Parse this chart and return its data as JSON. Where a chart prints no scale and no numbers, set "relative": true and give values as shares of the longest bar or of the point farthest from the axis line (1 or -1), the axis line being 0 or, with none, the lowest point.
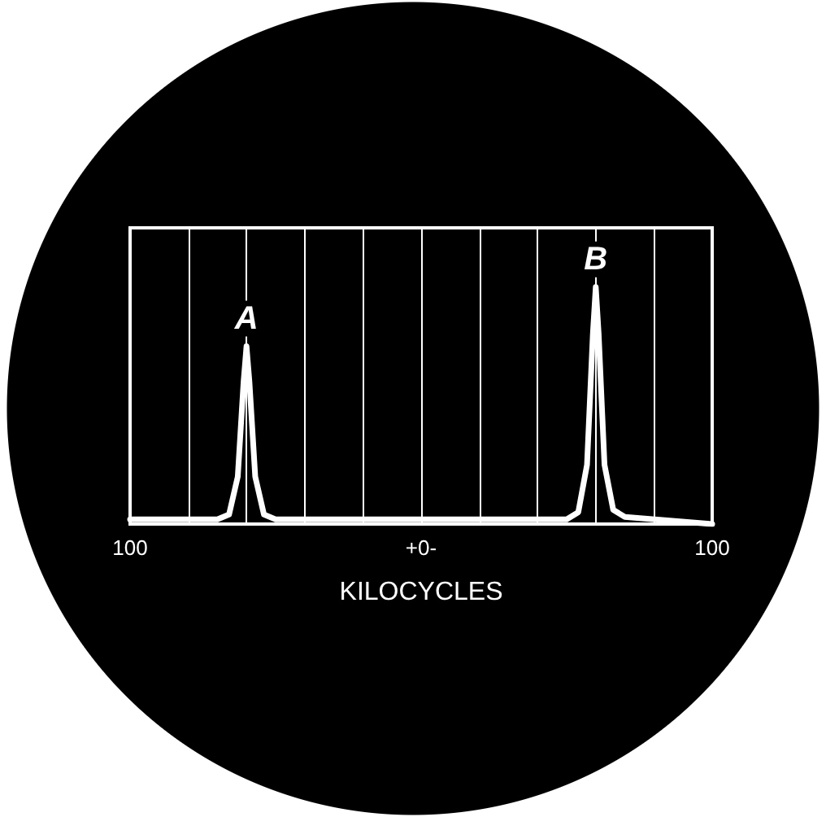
{
  "chart_data": {
    "type": "line",
    "relative": true,
    "xlabel": "KILOCYCLES",
    "x": [
      -100,
      -70,
      -66,
      -63,
      -61,
      -60,
      -59,
      -57,
      -54,
      -50,
      0,
      50,
      54,
      57,
      59,
      60,
      61,
      63,
      66,
      70,
      100
    ],
    "series": [
      {
        "color": "#ffffff",
        "values": [
          0.02,
          0.02,
          0.04,
          0.2,
          0.6,
          0.75,
          0.6,
          0.2,
          0.04,
          0.02,
          0.02,
          0.02,
          0.05,
          0.25,
          0.8,
          1,
          0.8,
          0.25,
          0.06,
          0.03,
          0
        ]
      }
    ],
    "xlim": [
      -100,
      100
    ],
    "xticks": [
      {
        "value": -100,
        "label": "100"
      },
      {
        "value": -80,
        "label": null
      },
      {
        "value": -60,
        "label": null
      },
      {
        "value": -40,
        "label": null
      },
      {
        "value": -20,
        "label": null
      },
      {
        "value": 0,
        "label": "+0-"
      },
      {
        "value": 20,
        "label": null
      },
      {
        "value": 40,
        "label": null
      },
      {
        "value": 60,
        "label": null
      },
      {
        "value": 80,
        "label": null
      },
      {
        "value": 100,
        "label": "100"
      }
    ],
    "annotations": [
      {
        "text": "A",
        "x": -60,
        "y": 0.75
      },
      {
        "text": "B",
        "x": 60,
        "y": 1
      }
    ],
    "grid": "x",
    "marker": "none",
    "line_style": "solid"
  }
}
